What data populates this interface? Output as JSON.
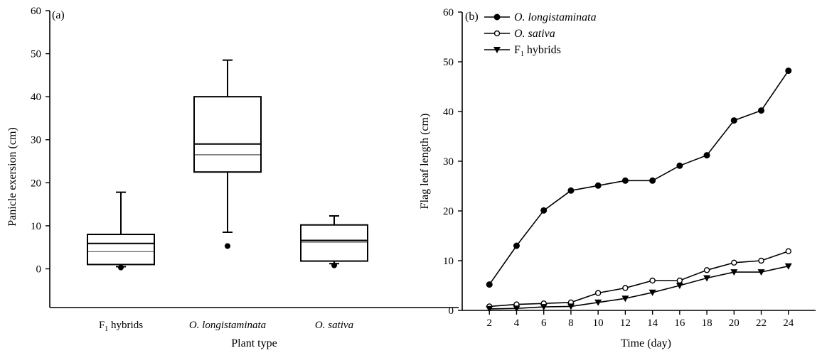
{
  "chart_data": [
    {
      "type": "box",
      "panel_label": "(a)",
      "xlabel": "Plant type",
      "ylabel": "Panicle exersion (cm)",
      "ylim": [
        -9,
        60
      ],
      "yticks": [
        0,
        10,
        20,
        30,
        40,
        50,
        60
      ],
      "grid": false,
      "categories": [
        {
          "main": "F",
          "sub": "1",
          "rest": " hybrids",
          "italic": false
        },
        {
          "main": "O. longistaminata",
          "sub": "",
          "rest": "",
          "italic": true
        },
        {
          "main": "O. sativa",
          "sub": "",
          "rest": "",
          "italic": true
        }
      ],
      "boxes": [
        {
          "whisker_low": 0.5,
          "q1": 1,
          "median": 5.9,
          "mean": 4,
          "q3": 8,
          "whisker_high": 17.8,
          "outliers": [
            0.3
          ]
        },
        {
          "whisker_low": 8.5,
          "q1": 22.5,
          "median": 29,
          "mean": 26.5,
          "q3": 40,
          "whisker_high": 48.5,
          "outliers": [
            5.3
          ]
        },
        {
          "whisker_low": 1.2,
          "q1": 1.8,
          "median": 6.6,
          "mean": 6.2,
          "q3": 10.2,
          "whisker_high": 12.3,
          "outliers": [
            0.8
          ]
        }
      ]
    },
    {
      "type": "line",
      "panel_label": "(b)",
      "xlabel": "Time (day)",
      "ylabel": "Flag leaf length (cm)",
      "ylim": [
        0,
        60
      ],
      "yticks": [
        0,
        10,
        20,
        30,
        40,
        50,
        60
      ],
      "xlim": [
        0,
        26
      ],
      "grid": false,
      "legend_position": "top-left",
      "x": [
        2,
        4,
        6,
        8,
        10,
        12,
        14,
        16,
        18,
        20,
        22,
        24
      ],
      "series": [
        {
          "name": "O. longistaminata",
          "name_main": "O. longistaminata",
          "name_sub": "",
          "name_rest": "",
          "italic": true,
          "marker": "filled-circle",
          "values": [
            5.2,
            13,
            20.1,
            24.1,
            25.1,
            26.1,
            26.1,
            29.1,
            31.2,
            38.2,
            40.2,
            48.2
          ]
        },
        {
          "name": "O. sativa",
          "name_main": "O. sativa",
          "name_sub": "",
          "name_rest": "",
          "italic": true,
          "marker": "open-circle",
          "values": [
            0.8,
            1.2,
            1.4,
            1.6,
            3.5,
            4.5,
            6,
            6,
            8.1,
            9.6,
            10,
            11.9
          ]
        },
        {
          "name": "F1 hybrids",
          "name_main": "F",
          "name_sub": "1",
          "name_rest": " hybrids",
          "italic": false,
          "marker": "filled-triangle-down",
          "values": [
            0.3,
            0.4,
            0.7,
            0.8,
            1.6,
            2.4,
            3.6,
            5,
            6.5,
            7.7,
            7.7,
            8.9
          ]
        }
      ]
    }
  ]
}
